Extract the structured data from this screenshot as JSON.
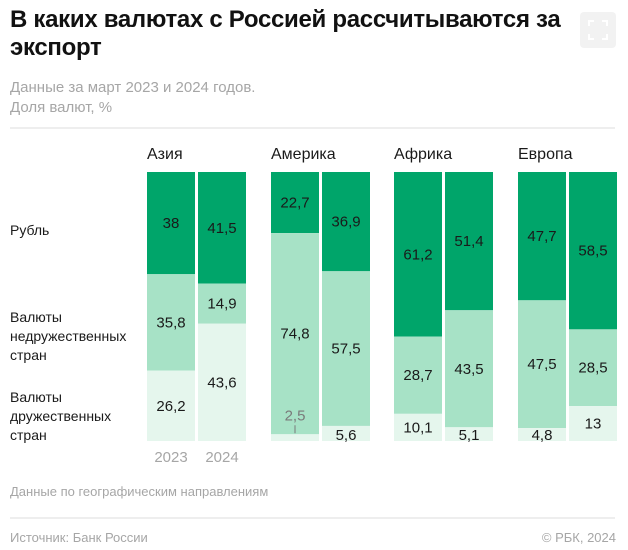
{
  "header": {
    "title": "В каких валютах с Россией рассчитываются за экспорт",
    "subtitle_line1": "Данные за март 2023 и 2024 годов.",
    "subtitle_line2": "Доля валют, %",
    "expand_button": "expand-icon"
  },
  "row_labels": {
    "ruble": "Рубль",
    "unfriendly_l1": "Валюты",
    "unfriendly_l2": "недружественных",
    "unfriendly_l3": "стран",
    "friendly_l1": "Валюты",
    "friendly_l2": "дружественных",
    "friendly_l3": "стран"
  },
  "footer": {
    "note": "Данные по географическим направлениям",
    "source": "Источник: Банк России",
    "copyright": "© РБК, 2024"
  },
  "colors": {
    "ruble": "#00a56a",
    "unfriendly": "#a7e2c6",
    "friendly": "#e5f6ed",
    "label_dark": "#1a1a1a",
    "label_muted": "#7a7a7a"
  },
  "chart_data": {
    "type": "bar",
    "stacked": true,
    "normalized": true,
    "title": "В каких валютах с Россией рассчитываются за экспорт",
    "subtitle": "Данные за март 2023 и 2024 годов. Доля валют, %",
    "xlabel": "",
    "ylabel": "Доля валют, %",
    "ylim": [
      0,
      100
    ],
    "grid": false,
    "legend": "left",
    "years": [
      "2023",
      "2024"
    ],
    "groups": [
      "Азия",
      "Америка",
      "Африка",
      "Европа"
    ],
    "series": [
      {
        "key": "ruble",
        "name": "Рубль",
        "values": {
          "Азия": [
            38,
            41.5
          ],
          "Америка": [
            22.7,
            36.9
          ],
          "Африка": [
            61.2,
            51.4
          ],
          "Европа": [
            47.7,
            58.5
          ]
        }
      },
      {
        "key": "unfriendly",
        "name": "Валюты недружественных стран",
        "values": {
          "Азия": [
            35.8,
            14.9
          ],
          "Америка": [
            74.8,
            57.5
          ],
          "Африка": [
            28.7,
            43.5
          ],
          "Европа": [
            47.5,
            28.5
          ]
        }
      },
      {
        "key": "friendly",
        "name": "Валюты дружественных стран",
        "values": {
          "Азия": [
            26.2,
            43.6
          ],
          "Америка": [
            2.5,
            5.6
          ],
          "Африка": [
            10.1,
            5.1
          ],
          "Европа": [
            4.8,
            13
          ]
        }
      }
    ],
    "labels": {
      "Азия": [
        [
          "38",
          "35,8",
          "26,2"
        ],
        [
          "41,5",
          "14,9",
          "43,6"
        ]
      ],
      "Америка": [
        [
          "22,7",
          "74,8",
          "2,5"
        ],
        [
          "36,9",
          "57,5",
          "5,6"
        ]
      ],
      "Африка": [
        [
          "61,2",
          "28,7",
          "10,1"
        ],
        [
          "51,4",
          "43,5",
          "5,1"
        ]
      ],
      "Европа": [
        [
          "47,7",
          "47,5",
          "4,8"
        ],
        [
          "58,5",
          "28,5",
          "13"
        ]
      ]
    }
  }
}
